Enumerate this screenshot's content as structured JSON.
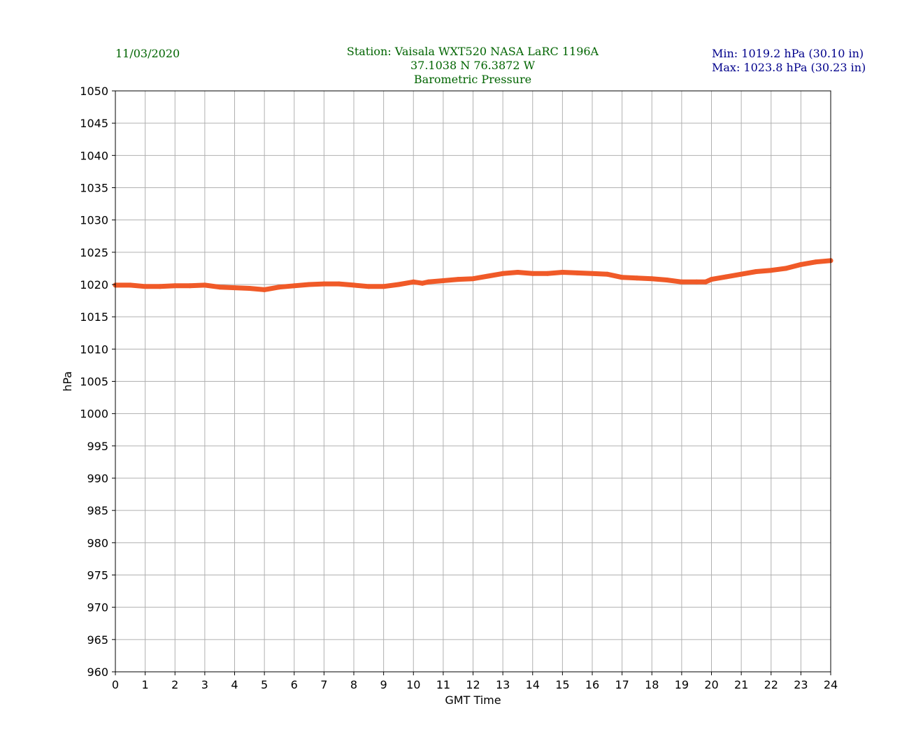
{
  "header": {
    "date": "11/03/2020",
    "station_line": "Station:  Vaisala WXT520  NASA LaRC 1196A",
    "coords_line": "37.1038 N 76.3872 W",
    "measure_line": "Barometric Pressure",
    "min_line": "Min: 1019.2 hPa (30.10 in)",
    "max_line": "Max: 1023.8 hPa (30.23 in)"
  },
  "colors": {
    "header_green": "#006400",
    "header_navy": "#00008b",
    "series": "#f05a28",
    "grid": "#b0b0b0"
  },
  "chart_data": {
    "type": "line",
    "title": "Barometric Pressure",
    "xlabel": "GMT Time",
    "ylabel": "hPa",
    "xlim": [
      0,
      24
    ],
    "ylim": [
      960,
      1050
    ],
    "x_ticks": [
      0,
      1,
      2,
      3,
      4,
      5,
      6,
      7,
      8,
      9,
      10,
      11,
      12,
      13,
      14,
      15,
      16,
      17,
      18,
      19,
      20,
      21,
      22,
      23,
      24
    ],
    "y_ticks": [
      960,
      965,
      970,
      975,
      980,
      985,
      990,
      995,
      1000,
      1005,
      1010,
      1015,
      1020,
      1025,
      1030,
      1035,
      1040,
      1045,
      1050
    ],
    "grid": true,
    "series": [
      {
        "x": [
          0,
          0.5,
          1,
          1.5,
          2,
          2.5,
          3,
          3.5,
          4,
          4.5,
          5,
          5.5,
          6,
          6.5,
          7,
          7.5,
          8,
          8.5,
          9,
          9.5,
          10,
          10.3,
          10.5,
          11,
          11.5,
          12,
          12.5,
          13,
          13.5,
          14,
          14.5,
          15,
          15.5,
          16,
          16.5,
          17,
          17.5,
          18,
          18.5,
          19,
          19.5,
          19.8,
          20,
          20.5,
          21,
          21.5,
          22,
          22.5,
          23,
          23.5,
          24
        ],
        "y": [
          1019.9,
          1019.9,
          1019.7,
          1019.7,
          1019.8,
          1019.8,
          1019.9,
          1019.6,
          1019.5,
          1019.4,
          1019.2,
          1019.6,
          1019.8,
          1020.0,
          1020.1,
          1020.1,
          1019.9,
          1019.7,
          1019.7,
          1020.0,
          1020.4,
          1020.2,
          1020.4,
          1020.6,
          1020.8,
          1020.9,
          1021.3,
          1021.7,
          1021.9,
          1021.7,
          1021.7,
          1021.9,
          1021.8,
          1021.7,
          1021.6,
          1021.1,
          1021.0,
          1020.9,
          1020.7,
          1020.4,
          1020.4,
          1020.4,
          1020.8,
          1021.2,
          1021.6,
          1022.0,
          1022.2,
          1022.5,
          1023.1,
          1023.5,
          1023.7
        ]
      }
    ]
  }
}
